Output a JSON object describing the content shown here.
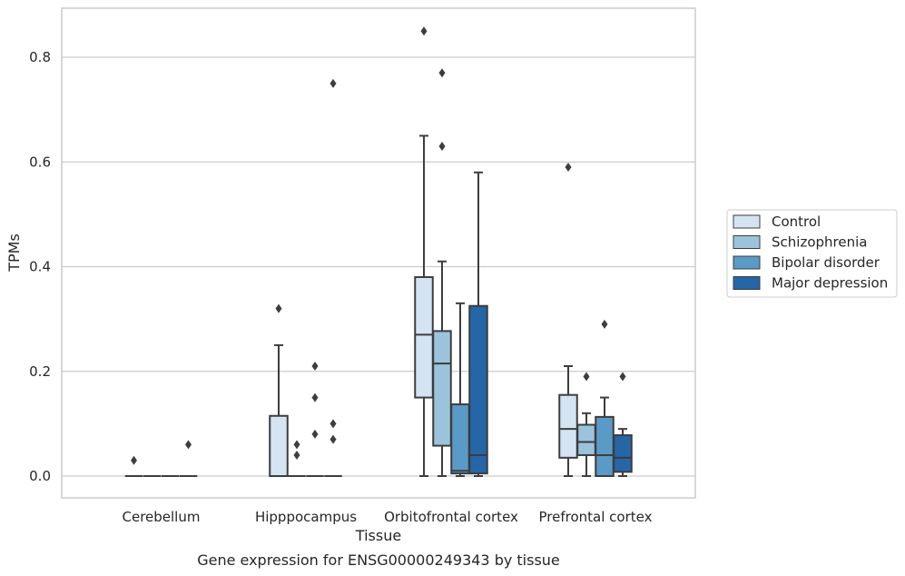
{
  "chart_data": {
    "type": "box",
    "caption": "Gene expression for ENSG00000249343 by tissue",
    "xlabel": "Tissue",
    "ylabel": "TPMs",
    "ylim": [
      -0.04,
      0.89
    ],
    "yticks": [
      0.0,
      0.2,
      0.4,
      0.6,
      0.8
    ],
    "ytick_labels": [
      "0.0",
      "0.2",
      "0.4",
      "0.6",
      "0.8"
    ],
    "grid": true,
    "legend_position": "right",
    "categories": [
      "Cerebellum",
      "Hipppocampus",
      "Orbitofrontal cortex",
      "Prefrontal cortex"
    ],
    "series": [
      {
        "name": "Control",
        "color": "#d5e4f2",
        "boxes": [
          {
            "q1": 0,
            "median": 0,
            "q3": 0,
            "whislo": 0,
            "whishi": 0,
            "fliers": [
              0.03
            ]
          },
          {
            "q1": 0,
            "median": 0,
            "q3": 0.115,
            "whislo": 0,
            "whishi": 0.25,
            "fliers": [
              0.32
            ]
          },
          {
            "q1": 0.15,
            "median": 0.27,
            "q3": 0.38,
            "whislo": 0,
            "whishi": 0.65,
            "fliers": [
              0.85
            ]
          },
          {
            "q1": 0.035,
            "median": 0.09,
            "q3": 0.155,
            "whislo": 0,
            "whishi": 0.21,
            "fliers": [
              0.59
            ]
          }
        ]
      },
      {
        "name": "Schizophrenia",
        "color": "#9bc4dc",
        "boxes": [
          {
            "q1": 0,
            "median": 0,
            "q3": 0,
            "whislo": 0,
            "whishi": 0,
            "fliers": []
          },
          {
            "q1": 0,
            "median": 0,
            "q3": 0,
            "whislo": 0,
            "whishi": 0,
            "fliers": [
              0.04,
              0.06
            ]
          },
          {
            "q1": 0.058,
            "median": 0.215,
            "q3": 0.277,
            "whislo": 0,
            "whishi": 0.41,
            "fliers": [
              0.63,
              0.77
            ]
          },
          {
            "q1": 0.04,
            "median": 0.065,
            "q3": 0.098,
            "whislo": 0,
            "whishi": 0.12,
            "fliers": [
              0.19
            ]
          }
        ]
      },
      {
        "name": "Bipolar disorder",
        "color": "#5a9ac6",
        "boxes": [
          {
            "q1": 0,
            "median": 0,
            "q3": 0,
            "whislo": 0,
            "whishi": 0,
            "fliers": []
          },
          {
            "q1": 0,
            "median": 0,
            "q3": 0,
            "whislo": 0,
            "whishi": 0,
            "fliers": [
              0.08,
              0.15,
              0.21
            ]
          },
          {
            "q1": 0.005,
            "median": 0.01,
            "q3": 0.137,
            "whislo": 0,
            "whishi": 0.33,
            "fliers": []
          },
          {
            "q1": 0,
            "median": 0.04,
            "q3": 0.113,
            "whislo": 0,
            "whishi": 0.15,
            "fliers": [
              0.29
            ]
          }
        ]
      },
      {
        "name": "Major depression",
        "color": "#2566a8",
        "boxes": [
          {
            "q1": 0,
            "median": 0,
            "q3": 0,
            "whislo": 0,
            "whishi": 0,
            "fliers": [
              0.06
            ]
          },
          {
            "q1": 0,
            "median": 0,
            "q3": 0,
            "whislo": 0,
            "whishi": 0,
            "fliers": [
              0.07,
              0.1,
              0.75
            ]
          },
          {
            "q1": 0.005,
            "median": 0.04,
            "q3": 0.325,
            "whislo": 0,
            "whishi": 0.58,
            "fliers": []
          },
          {
            "q1": 0.008,
            "median": 0.035,
            "q3": 0.078,
            "whislo": 0,
            "whishi": 0.09,
            "fliers": [
              0.19
            ]
          }
        ]
      }
    ]
  }
}
